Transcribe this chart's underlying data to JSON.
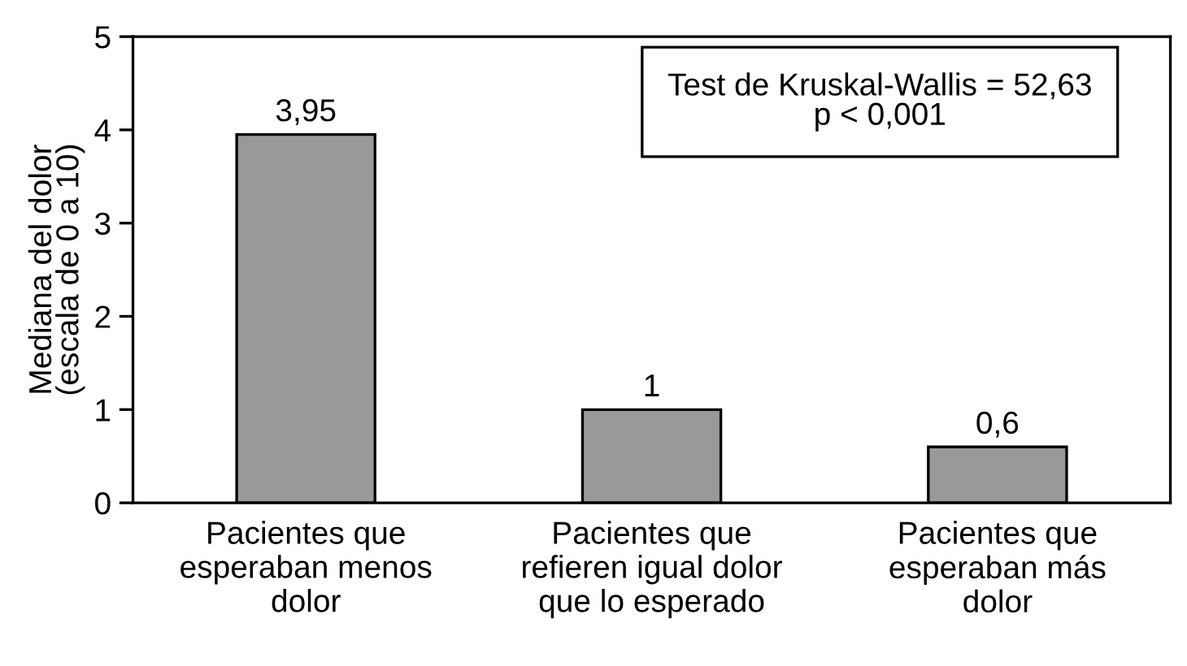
{
  "chart_data": {
    "type": "bar",
    "categories": [
      "Pacientes que\nesperaban menos\ndolor",
      "Pacientes que\nrefieren igual dolor\nque lo esperado",
      "Pacientes que\nesperaban más\ndolor"
    ],
    "values": [
      3.95,
      1,
      0.6
    ],
    "value_labels": [
      "3,95",
      "1",
      "0,6"
    ],
    "color": "#999999",
    "ylabel": "Mediana del dolor\n(escala de 0 a 10)",
    "ylim": [
      0,
      5
    ],
    "yticks": [
      0,
      1,
      2,
      3,
      4,
      5
    ],
    "annotations": [
      "Test de Kruskal-Wallis = 52,63\np < 0,001"
    ],
    "grid": false,
    "legend": false
  }
}
